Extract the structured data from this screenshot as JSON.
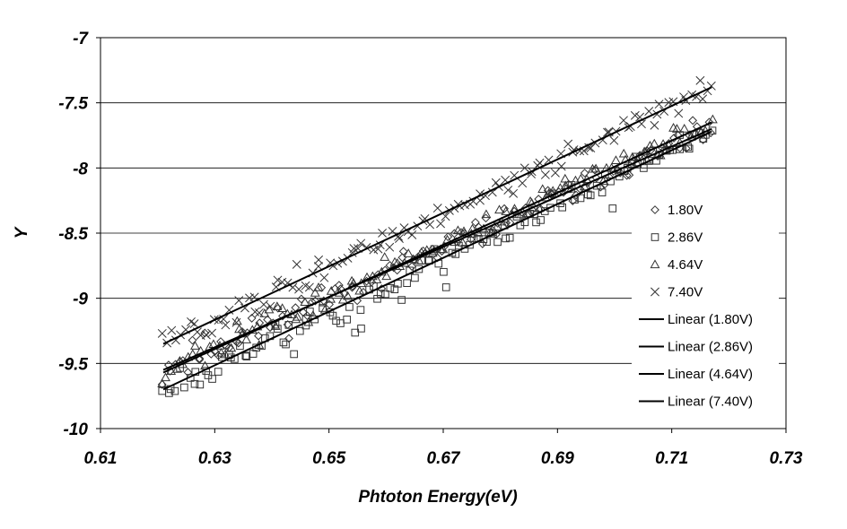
{
  "chart_data": {
    "type": "scatter",
    "title": "",
    "xlabel": "Phtoton Energy(eV)",
    "ylabel": "Y",
    "xlim": [
      0.61,
      0.73
    ],
    "ylim": [
      -10,
      -7
    ],
    "x_ticks": [
      0.61,
      0.63,
      0.65,
      0.67,
      0.69,
      0.71,
      0.73
    ],
    "x_tick_labels": [
      "0.61",
      "0.63",
      "0.65",
      "0.67",
      "0.69",
      "0.71",
      "0.73"
    ],
    "y_ticks": [
      -7,
      -7.5,
      -8,
      -8.5,
      -9,
      -9.5,
      -10
    ],
    "y_tick_labels": [
      "-7",
      "-7.5",
      "-8",
      "-8.5",
      "-9",
      "-9.5",
      "-10"
    ],
    "grid": "horizontal",
    "legend_position": "right",
    "x_range_data": [
      0.621,
      0.717
    ],
    "series": [
      {
        "name": "1.80V",
        "marker": "diamond",
        "fit_start": [
          0.621,
          -9.55
        ],
        "fit_end": [
          0.717,
          -7.7
        ],
        "noise": 0.09,
        "seed": 11
      },
      {
        "name": "2.86V",
        "marker": "square",
        "fit_start": [
          0.621,
          -9.7
        ],
        "fit_end": [
          0.717,
          -7.72
        ],
        "noise": 0.1,
        "seed": 23
      },
      {
        "name": "4.64V",
        "marker": "triangle",
        "fit_start": [
          0.621,
          -9.57
        ],
        "fit_end": [
          0.717,
          -7.65
        ],
        "noise": 0.08,
        "seed": 37
      },
      {
        "name": "7.40V",
        "marker": "cross",
        "fit_start": [
          0.621,
          -9.35
        ],
        "fit_end": [
          0.717,
          -7.38
        ],
        "noise": 0.08,
        "seed": 51
      }
    ],
    "linear_fits": [
      {
        "name": "Linear (1.80V)",
        "start": [
          0.621,
          -9.55
        ],
        "end": [
          0.717,
          -7.7
        ]
      },
      {
        "name": "Linear (2.86V)",
        "start": [
          0.621,
          -9.7
        ],
        "end": [
          0.717,
          -7.72
        ]
      },
      {
        "name": "Linear (4.64V)",
        "start": [
          0.621,
          -9.57
        ],
        "end": [
          0.717,
          -7.65
        ]
      },
      {
        "name": "Linear (7.40V)",
        "start": [
          0.621,
          -9.35
        ],
        "end": [
          0.717,
          -7.38
        ]
      }
    ],
    "legend": [
      "1.80V",
      "2.86V",
      "4.64V",
      "7.40V",
      "Linear (1.80V)",
      "Linear (2.86V)",
      "Linear (4.64V)",
      "Linear (7.40V)"
    ],
    "points_per_series": 130
  }
}
